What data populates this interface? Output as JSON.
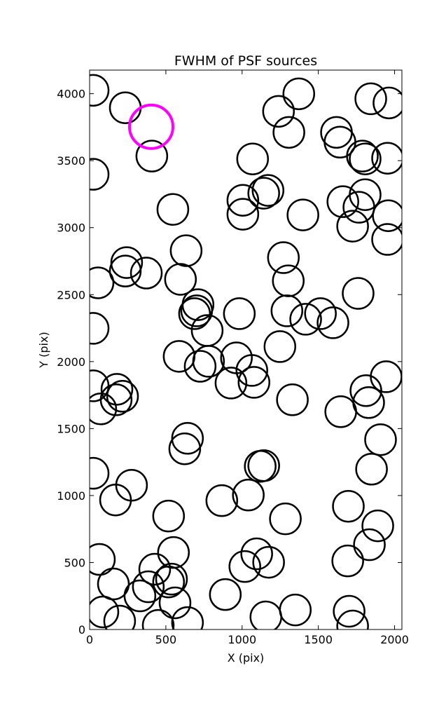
{
  "chart_data": {
    "type": "scatter",
    "title": "FWHM of PSF sources",
    "x_label": "X (pix)",
    "y_label": "Y (pix)",
    "xlim": [
      0,
      2048
    ],
    "ylim": [
      0,
      4176
    ],
    "xticks": [
      0,
      500,
      1000,
      1500,
      2000
    ],
    "yticks": [
      0,
      500,
      1000,
      1500,
      2000,
      2500,
      3000,
      3500,
      4000
    ],
    "series": [
      {
        "color": "#000000",
        "x": [
          23,
          234,
          408,
          23,
          546,
          633,
          243,
          234,
          372,
          55,
          596,
          711,
          702,
          688,
          771,
          23,
          982,
          587,
          725,
          780,
          963,
          1064,
          927,
          1078,
          23,
          179,
          216,
          174,
          73,
          1248,
          1294,
          1303,
          1271,
          1417,
          1514,
          1596,
          1761,
          1005,
          1005,
          1142,
          1170,
          1069,
          1239,
          1307,
          1372,
          1399,
          1619,
          1642,
          1789,
          1807,
          1844,
          1963,
          1954,
          1807,
          1661,
          1766,
          1725,
          1959,
          1954,
          1945,
          1812,
          1830,
          1647,
          1330,
          1908,
          1849,
          1697,
          1890,
          1835,
          1693,
          1702,
          1725,
          1349,
          1156,
          1284,
          1174,
          1096,
          1018,
          1041,
          1119,
          1142,
          867,
          890,
          642,
          624,
          518,
          550,
          427,
          518,
          537,
          385,
          330,
          560,
          642,
          450,
          197,
          87,
          156,
          275,
          170,
          23,
          64
        ],
        "values": [
          4025,
          3895,
          3534,
          3398,
          3136,
          2828,
          2739,
          2676,
          2661,
          2588,
          2614,
          2425,
          2379,
          2358,
          2232,
          2248,
          2358,
          2039,
          1965,
          2002,
          2028,
          1934,
          1840,
          1845,
          1819,
          1793,
          1741,
          1715,
          1647,
          2112,
          2379,
          2603,
          2776,
          2316,
          2358,
          2290,
          2509,
          3204,
          3100,
          3257,
          3278,
          3513,
          3868,
          3711,
          3999,
          3095,
          3711,
          3638,
          3534,
          3513,
          3962,
          3931,
          3518,
          3246,
          3194,
          3152,
          3011,
          3089,
          2912,
          1887,
          1783,
          1694,
          1626,
          1715,
          1417,
          1197,
          920,
          774,
          633,
          512,
          136,
          26,
          146,
          94,
          826,
          502,
          565,
          470,
          1004,
          1218,
          1223,
          962,
          261,
          1427,
          1349,
          847,
          575,
          450,
          355,
          376,
          319,
          251,
          199,
          52,
          31,
          63,
          131,
          340,
          1077,
          967,
          1166,
          523
        ]
      },
      {
        "color": "#ff00ff",
        "x": [
          404
        ],
        "values": [
          3753
        ]
      }
    ]
  }
}
